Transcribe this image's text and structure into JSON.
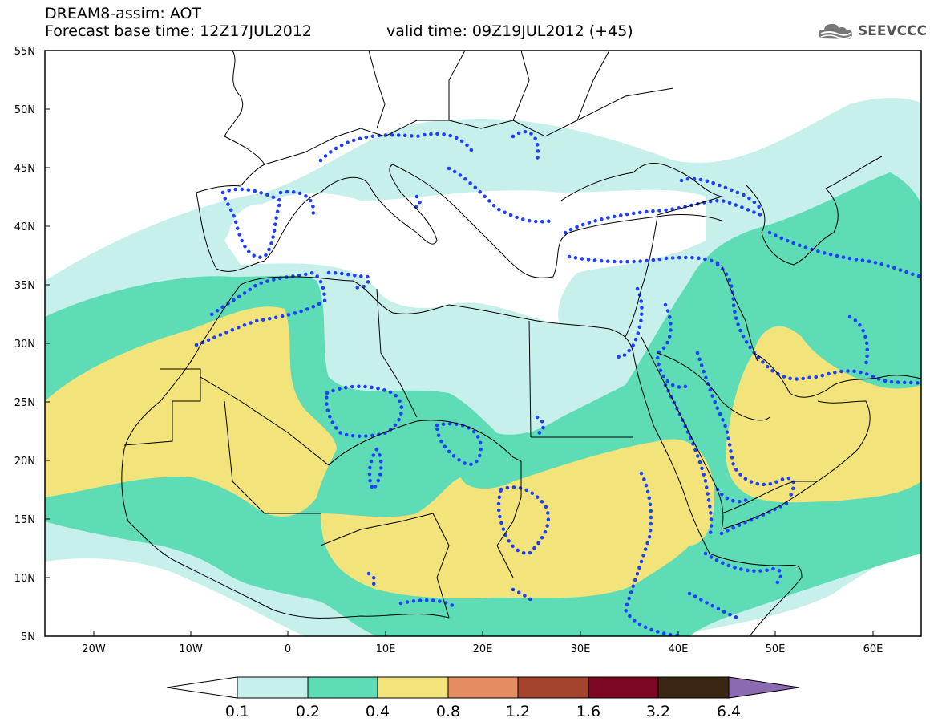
{
  "header": {
    "title_line1": "DREAM8-assim: AOT",
    "title_line2": "Forecast base time: 12Z17JUL2012",
    "valid_time": "valid time: 09Z19JUL2012 (+45)"
  },
  "logo": {
    "text": "SEEVCCC",
    "icon": "cloud-logo-icon"
  },
  "map": {
    "field": "AOT",
    "lon_range": [
      -25,
      65
    ],
    "lat_range": [
      5,
      55
    ],
    "lat_labels": [
      "55N",
      "50N",
      "45N",
      "40N",
      "35N",
      "30N",
      "25N",
      "20N",
      "15N",
      "10N",
      "5N"
    ],
    "lon_labels": [
      "20W",
      "10W",
      "0",
      "10E",
      "20E",
      "30E",
      "40E",
      "50E",
      "60E"
    ],
    "contour_overlay": "blue-dotted-contours",
    "colors": {
      "c0_1": "#c7f0ea",
      "c0_2": "#5ddcb6",
      "c0_4": "#f2e47a",
      "contour": "#1f3fff"
    }
  },
  "colorbar": {
    "labels": [
      "0.1",
      "0.2",
      "0.4",
      "0.8",
      "1.2",
      "1.6",
      "3.2",
      "6.4"
    ],
    "colors": [
      "#ffffff",
      "#c7f0ea",
      "#5ddcb6",
      "#f2e47a",
      "#e58c62",
      "#a4442e",
      "#7c0723",
      "#3b2513",
      "#8c6ab2"
    ]
  }
}
